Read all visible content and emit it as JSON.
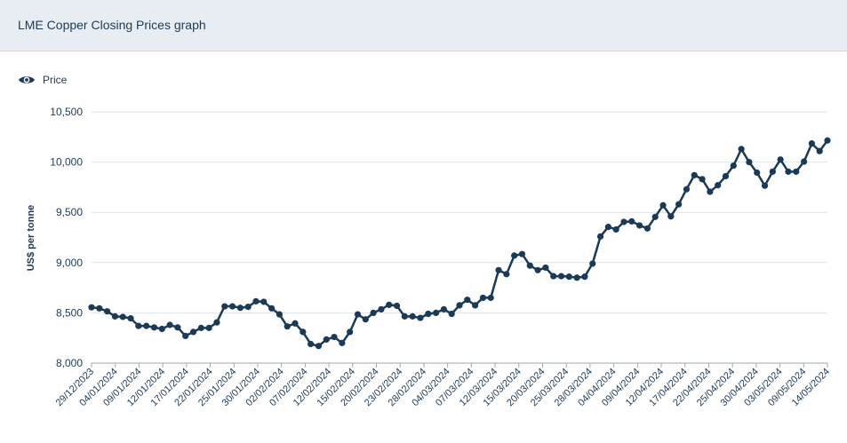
{
  "header": {
    "title": "LME Copper Closing Prices graph"
  },
  "legend": {
    "label": "Price",
    "icon": "eye-icon"
  },
  "colors": {
    "line": "#1b3a57",
    "grid": "#dde3e8",
    "header_bg": "#e7edf2",
    "text": "#1d3a55"
  },
  "chart_data": {
    "type": "line",
    "title": "LME Copper Closing Prices graph",
    "xlabel": "",
    "ylabel": "US$ per tonne",
    "ylim": [
      8000,
      10500
    ],
    "yticks": [
      8000,
      8500,
      9000,
      9500,
      10000,
      10500
    ],
    "ytick_labels": [
      "8,000",
      "8,500",
      "9,000",
      "9,500",
      "10,000",
      "10,500"
    ],
    "xtick_labels": [
      "29/12/2023",
      "04/01/2024",
      "09/01/2024",
      "12/01/2024",
      "17/01/2024",
      "22/01/2024",
      "25/01/2024",
      "30/01/2024",
      "02/02/2024",
      "07/02/2024",
      "12/02/2024",
      "15/02/2024",
      "20/02/2024",
      "23/02/2024",
      "28/02/2024",
      "04/03/2024",
      "07/03/2024",
      "12/03/2024",
      "15/03/2024",
      "20/03/2024",
      "25/03/2024",
      "28/03/2024",
      "04/04/2024",
      "09/04/2024",
      "12/04/2024",
      "17/04/2024",
      "22/04/2024",
      "25/04/2024",
      "30/04/2024",
      "03/05/2024",
      "09/05/2024",
      "14/05/2024"
    ],
    "grid": true,
    "legend": "top-left",
    "series": [
      {
        "name": "Price",
        "values": [
          8555,
          8545,
          8515,
          8465,
          8460,
          8445,
          8370,
          8370,
          8355,
          8340,
          8380,
          8355,
          8270,
          8310,
          8350,
          8350,
          8405,
          8565,
          8565,
          8550,
          8560,
          8615,
          8610,
          8545,
          8485,
          8365,
          8395,
          8310,
          8190,
          8170,
          8235,
          8260,
          8200,
          8310,
          8485,
          8435,
          8500,
          8535,
          8580,
          8570,
          8465,
          8465,
          8450,
          8490,
          8500,
          8535,
          8490,
          8575,
          8630,
          8575,
          8650,
          8650,
          8925,
          8885,
          9070,
          9085,
          8970,
          8925,
          8950,
          8865,
          8865,
          8860,
          8850,
          8860,
          8990,
          9260,
          9355,
          9330,
          9405,
          9410,
          9370,
          9340,
          9455,
          9570,
          9460,
          9580,
          9730,
          9870,
          9830,
          9705,
          9770,
          9860,
          9965,
          10130,
          10000,
          9895,
          9765,
          9905,
          10025,
          9905,
          9905,
          10005,
          10185,
          10110,
          10215
        ]
      }
    ]
  }
}
